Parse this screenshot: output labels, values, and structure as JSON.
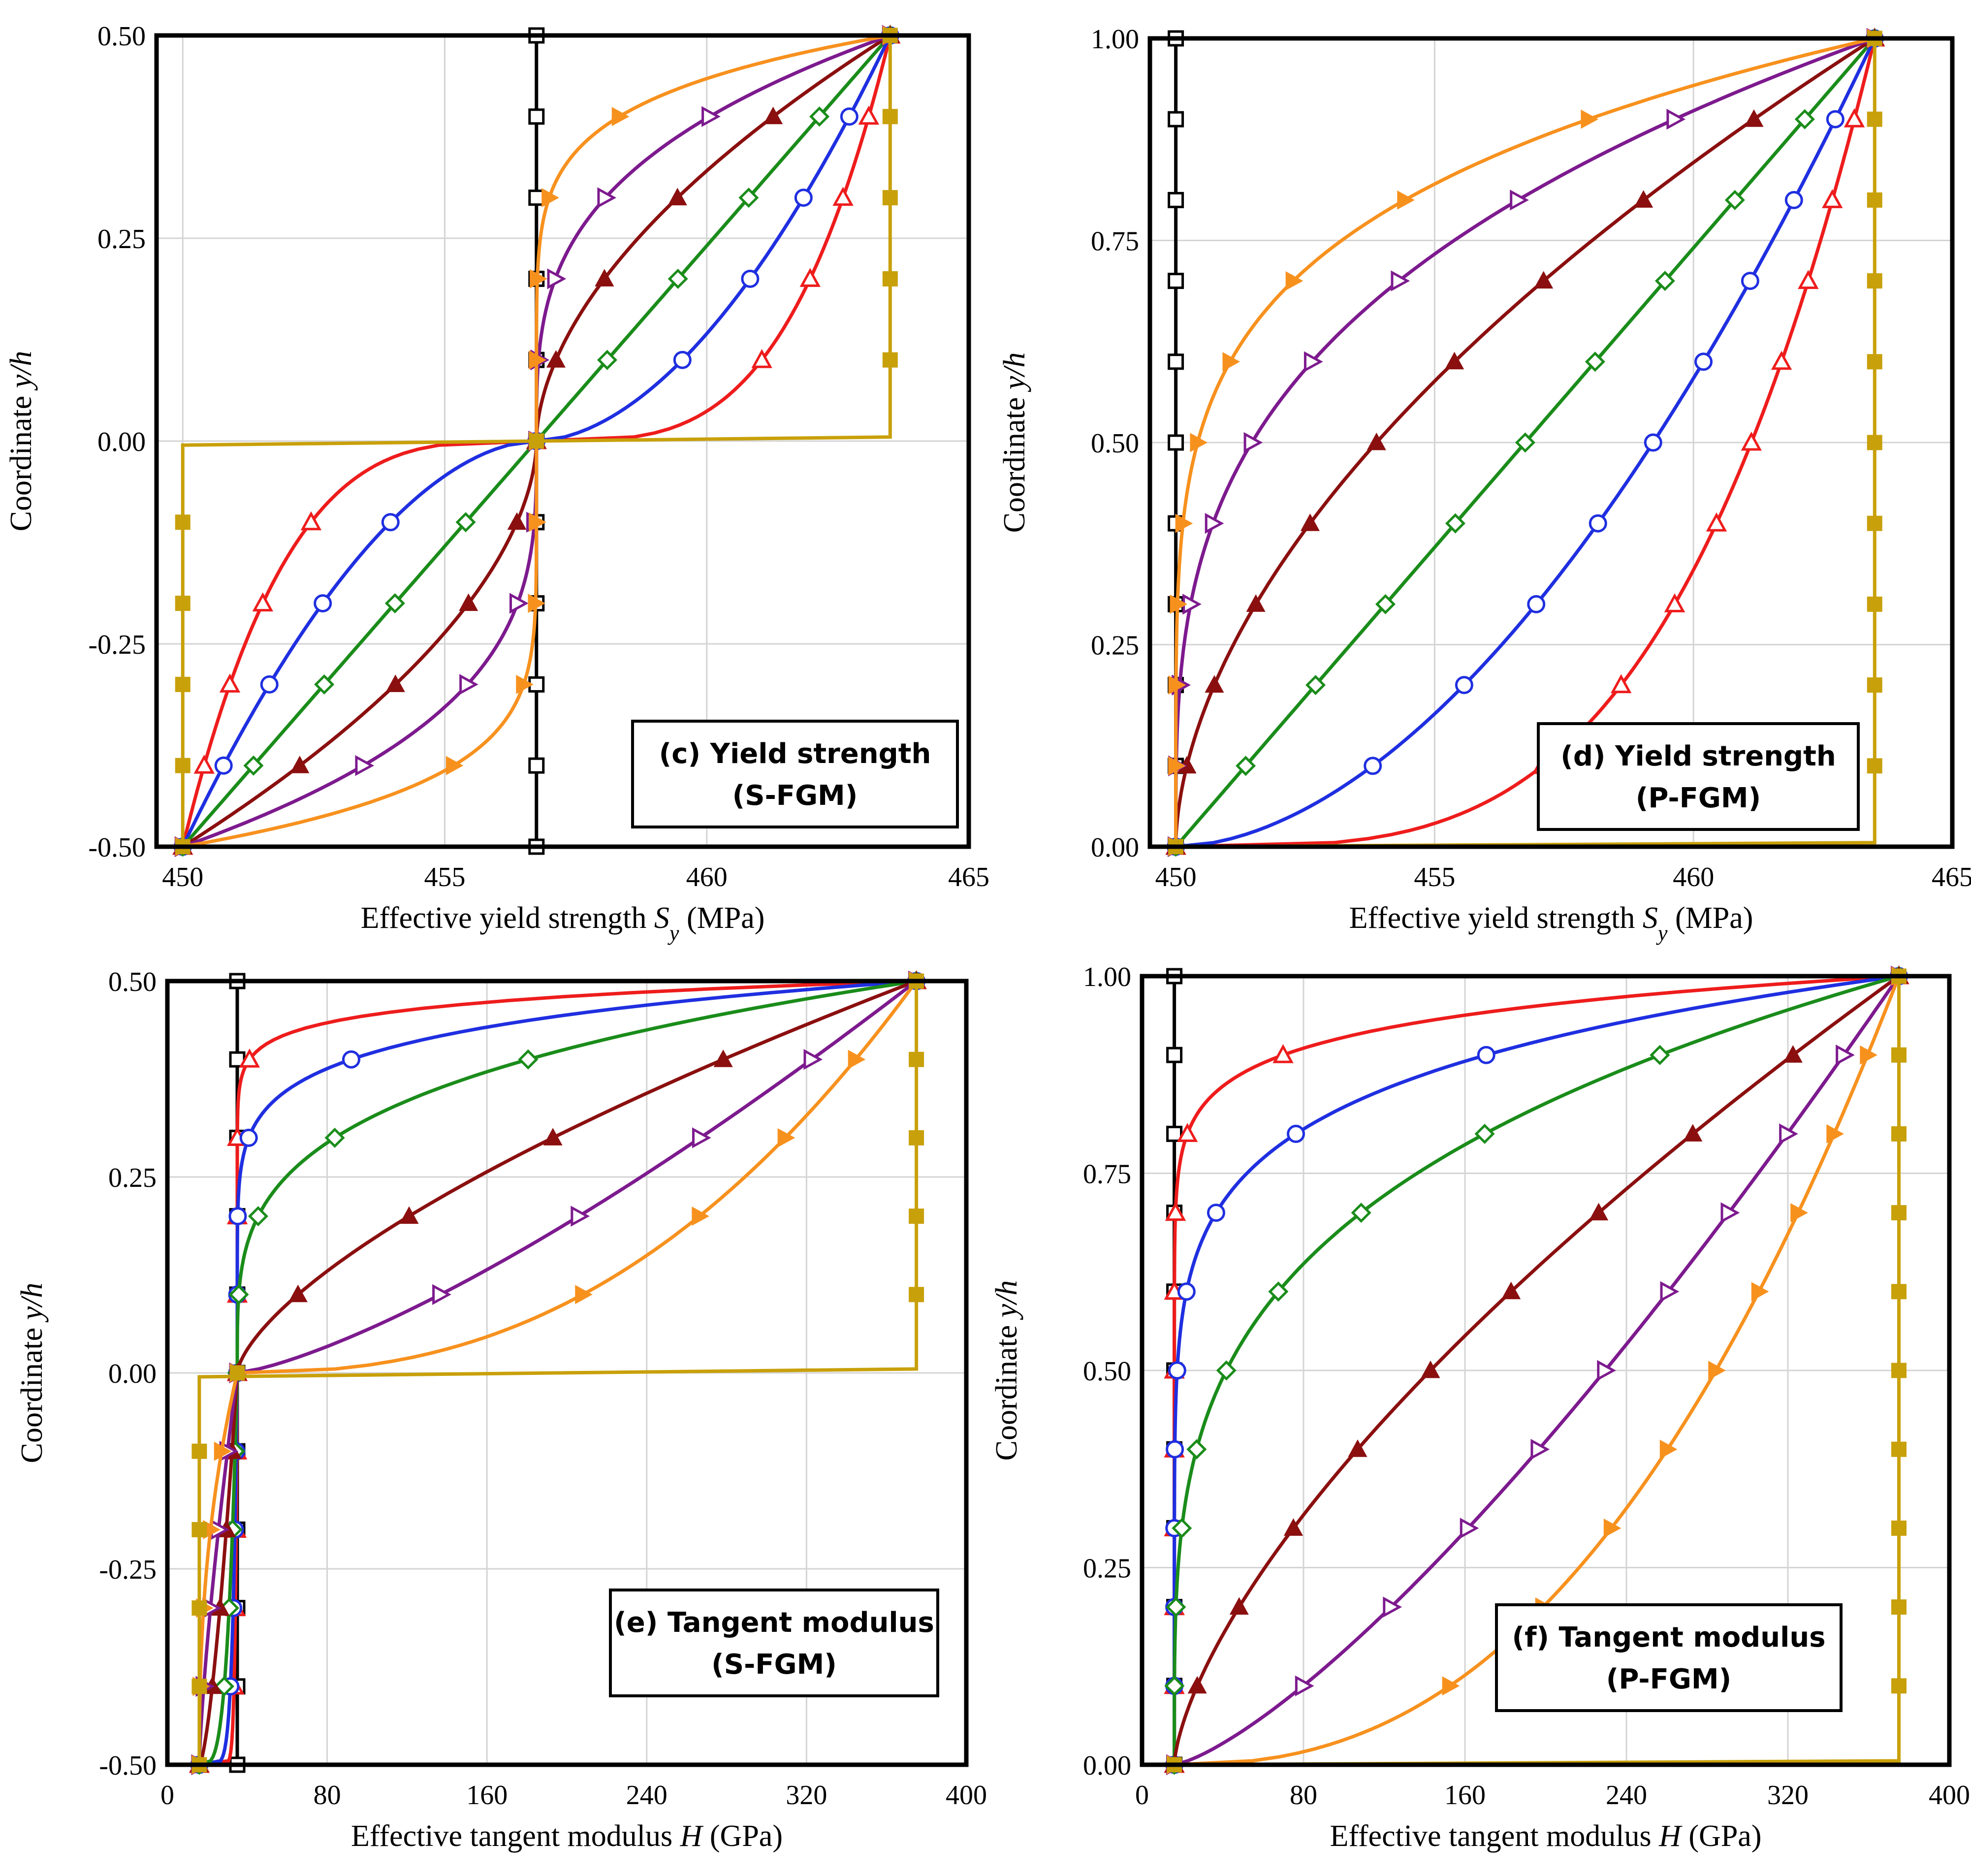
{
  "chart_data": [
    {
      "id": "c",
      "type": "line",
      "title_line1": "(c) Yield strength",
      "title_line2": "(S-FGM)",
      "xlabel": "Effective yield strength ",
      "xlabel_sym": "S",
      "xlabel_sub": "y",
      "xlabel_unit": " (MPa)",
      "ylabel": "Coordinate ",
      "ylabel_sym": "y/h",
      "xlim": [
        449.5,
        465
      ],
      "ylim": [
        -0.5,
        0.5
      ],
      "xticks": [
        "450",
        "455",
        "460",
        "465"
      ],
      "xtick_values": [
        450,
        455,
        460,
        465
      ],
      "yticks": [
        "-0.50",
        "-0.25",
        "0.00",
        "0.25",
        "0.50"
      ],
      "ytick_values": [
        -0.5,
        -0.25,
        0,
        0.25,
        0.5
      ]
    },
    {
      "id": "d",
      "type": "line",
      "title_line1": "(d) Yield strength",
      "title_line2": "(P-FGM)",
      "xlabel": "Effective yield strength ",
      "xlabel_sym": "S",
      "xlabel_sub": "y",
      "xlabel_unit": " (MPa)",
      "ylabel": "Coordinate ",
      "ylabel_sym": "y/h",
      "xlim": [
        449.5,
        465
      ],
      "ylim": [
        0,
        1
      ],
      "xticks": [
        "450",
        "455",
        "460",
        "465"
      ],
      "xtick_values": [
        450,
        455,
        460,
        465
      ],
      "yticks": [
        "0.00",
        "0.25",
        "0.50",
        "0.75",
        "1.00"
      ],
      "ytick_values": [
        0,
        0.25,
        0.5,
        0.75,
        1
      ]
    },
    {
      "id": "e",
      "type": "line",
      "title_line1": "(e) Tangent modulus",
      "title_line2": "(S-FGM)",
      "xlabel": "Effective tangent modulus ",
      "xlabel_sym": "H",
      "xlabel_sub": "",
      "xlabel_unit": " (GPa)",
      "ylabel": "Coordinate ",
      "ylabel_sym": "y/h",
      "xlim": [
        0,
        400
      ],
      "ylim": [
        -0.5,
        0.5
      ],
      "xticks": [
        "0",
        "80",
        "160",
        "240",
        "320",
        "400"
      ],
      "xtick_values": [
        0,
        80,
        160,
        240,
        320,
        400
      ],
      "yticks": [
        "-0.50",
        "-0.25",
        "0.00",
        "0.25",
        "0.50"
      ],
      "ytick_values": [
        -0.5,
        -0.25,
        0,
        0.25,
        0.5
      ]
    },
    {
      "id": "f",
      "type": "line",
      "title_line1": "(f) Tangent modulus",
      "title_line2": "(P-FGM)",
      "xlabel": "Effective tangent modulus ",
      "xlabel_sym": "H",
      "xlabel_sub": "",
      "xlabel_unit": " (GPa)",
      "ylabel": "Coordinate ",
      "ylabel_sym": "y/h",
      "xlim": [
        0,
        400
      ],
      "ylim": [
        0,
        1
      ],
      "xticks": [
        "0",
        "80",
        "160",
        "240",
        "320",
        "400"
      ],
      "xtick_values": [
        0,
        80,
        160,
        240,
        320,
        400
      ],
      "yticks": [
        "0.00",
        "0.25",
        "0.50",
        "0.75",
        "1.00"
      ],
      "ytick_values": [
        0,
        0.25,
        0.5,
        0.75,
        1
      ]
    }
  ],
  "series_styles": [
    {
      "key": "black",
      "color": "#000000",
      "marker": "square-open"
    },
    {
      "key": "red",
      "color": "#ee1c1c",
      "marker": "triangle-open"
    },
    {
      "key": "blue",
      "color": "#1f2fe0",
      "marker": "circle-open"
    },
    {
      "key": "green",
      "color": "#1a8c1a",
      "marker": "diamond-open"
    },
    {
      "key": "darkred",
      "color": "#8b0f0f",
      "marker": "triangle-filled"
    },
    {
      "key": "purple",
      "color": "#7d1a8e",
      "marker": "right-triangle-open"
    },
    {
      "key": "orange",
      "color": "#f7911e",
      "marker": "right-triangle-filled"
    },
    {
      "key": "gold",
      "color": "#c8a00a",
      "marker": "square-filled"
    }
  ]
}
